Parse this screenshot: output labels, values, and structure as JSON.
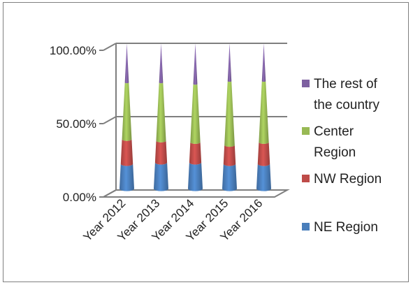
{
  "chart_data": {
    "type": "bar",
    "subtype": "stacked-100-percent-cone-3d",
    "categories": [
      "Year 2012",
      "Year 2013",
      "Year 2014",
      "Year 2015",
      "Year 2016"
    ],
    "series": [
      {
        "name": "NE Region",
        "color": "#4a7ebb",
        "values": [
          17,
          18,
          18,
          17,
          17
        ]
      },
      {
        "name": "NW Region",
        "color": "#be4b48",
        "values": [
          17,
          15,
          14,
          13,
          15
        ]
      },
      {
        "name": "Center Region",
        "color": "#98b954",
        "values": [
          39,
          40,
          40,
          44,
          42
        ]
      },
      {
        "name": "The rest of the country",
        "color": "#7d60a0",
        "values": [
          27,
          27,
          28,
          26,
          26
        ]
      }
    ],
    "y_ticks": [
      "0.00%",
      "50.00%",
      "100.00%"
    ],
    "ylim": [
      0,
      100
    ],
    "grid": true,
    "legend_position": "right"
  }
}
